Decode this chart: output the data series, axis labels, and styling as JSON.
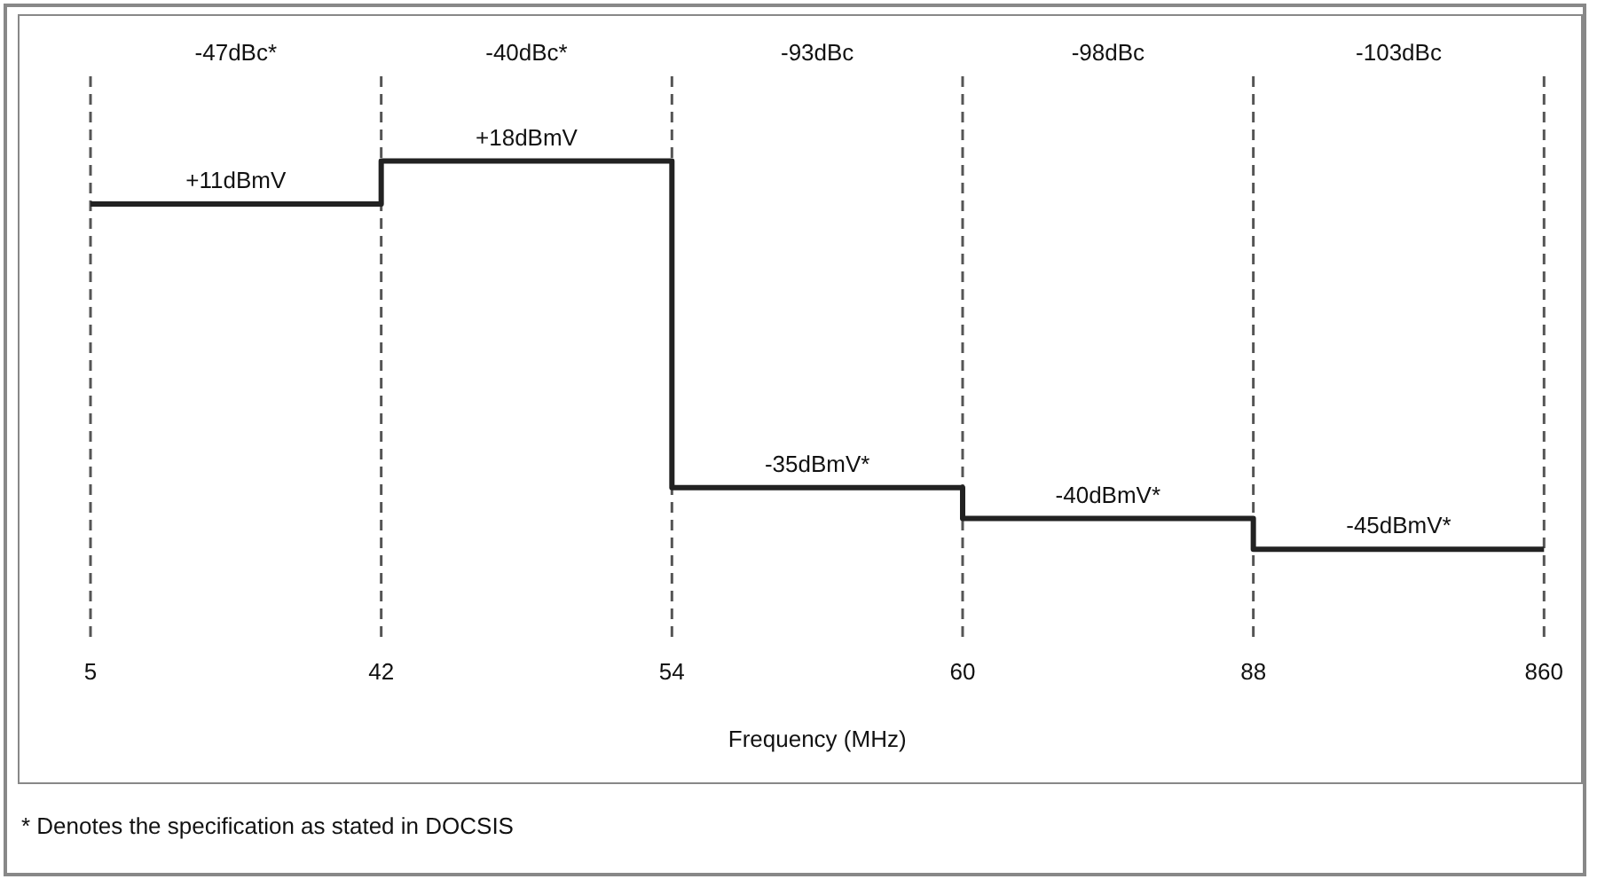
{
  "chart_data": {
    "type": "step",
    "xlabel": "Frequency (MHz)",
    "categories": [
      "5",
      null,
      "42",
      null,
      "54",
      null,
      "60",
      null,
      "88",
      null,
      "860"
    ],
    "series": [
      {
        "color": "#222222",
        "values": [
          11,
          11,
          null,
          18,
          null,
          -35,
          null,
          -40,
          null,
          -45,
          -45
        ],
        "value_labels": [
          null,
          "+11dBmV",
          null,
          "+18dBmV",
          null,
          "-35dBmV*",
          null,
          "-40dBmV*",
          null,
          "-45dBmV*",
          null
        ]
      }
    ],
    "tick_labels": "x",
    "grid": false,
    "legend": false,
    "marker": "none",
    "line_style": "solid",
    "ref_lines": [
      {
        "axis": "x",
        "value": "5",
        "color": "#555555",
        "line_style": "dashed"
      },
      {
        "axis": "x",
        "value": "42",
        "color": "#555555",
        "line_style": "dashed"
      },
      {
        "axis": "x",
        "value": "54",
        "color": "#555555",
        "line_style": "dashed"
      },
      {
        "axis": "x",
        "value": "60",
        "color": "#555555",
        "line_style": "dashed"
      },
      {
        "axis": "x",
        "value": "88",
        "color": "#555555",
        "line_style": "dashed"
      },
      {
        "axis": "x",
        "value": "860",
        "color": "#555555",
        "line_style": "dashed"
      }
    ],
    "annotations": [
      "-47dBc*",
      "-40dBc*",
      "-93dBc",
      "-98dBc",
      "-103dBc",
      "* Denotes the specification as stated in DOCSIS"
    ]
  }
}
